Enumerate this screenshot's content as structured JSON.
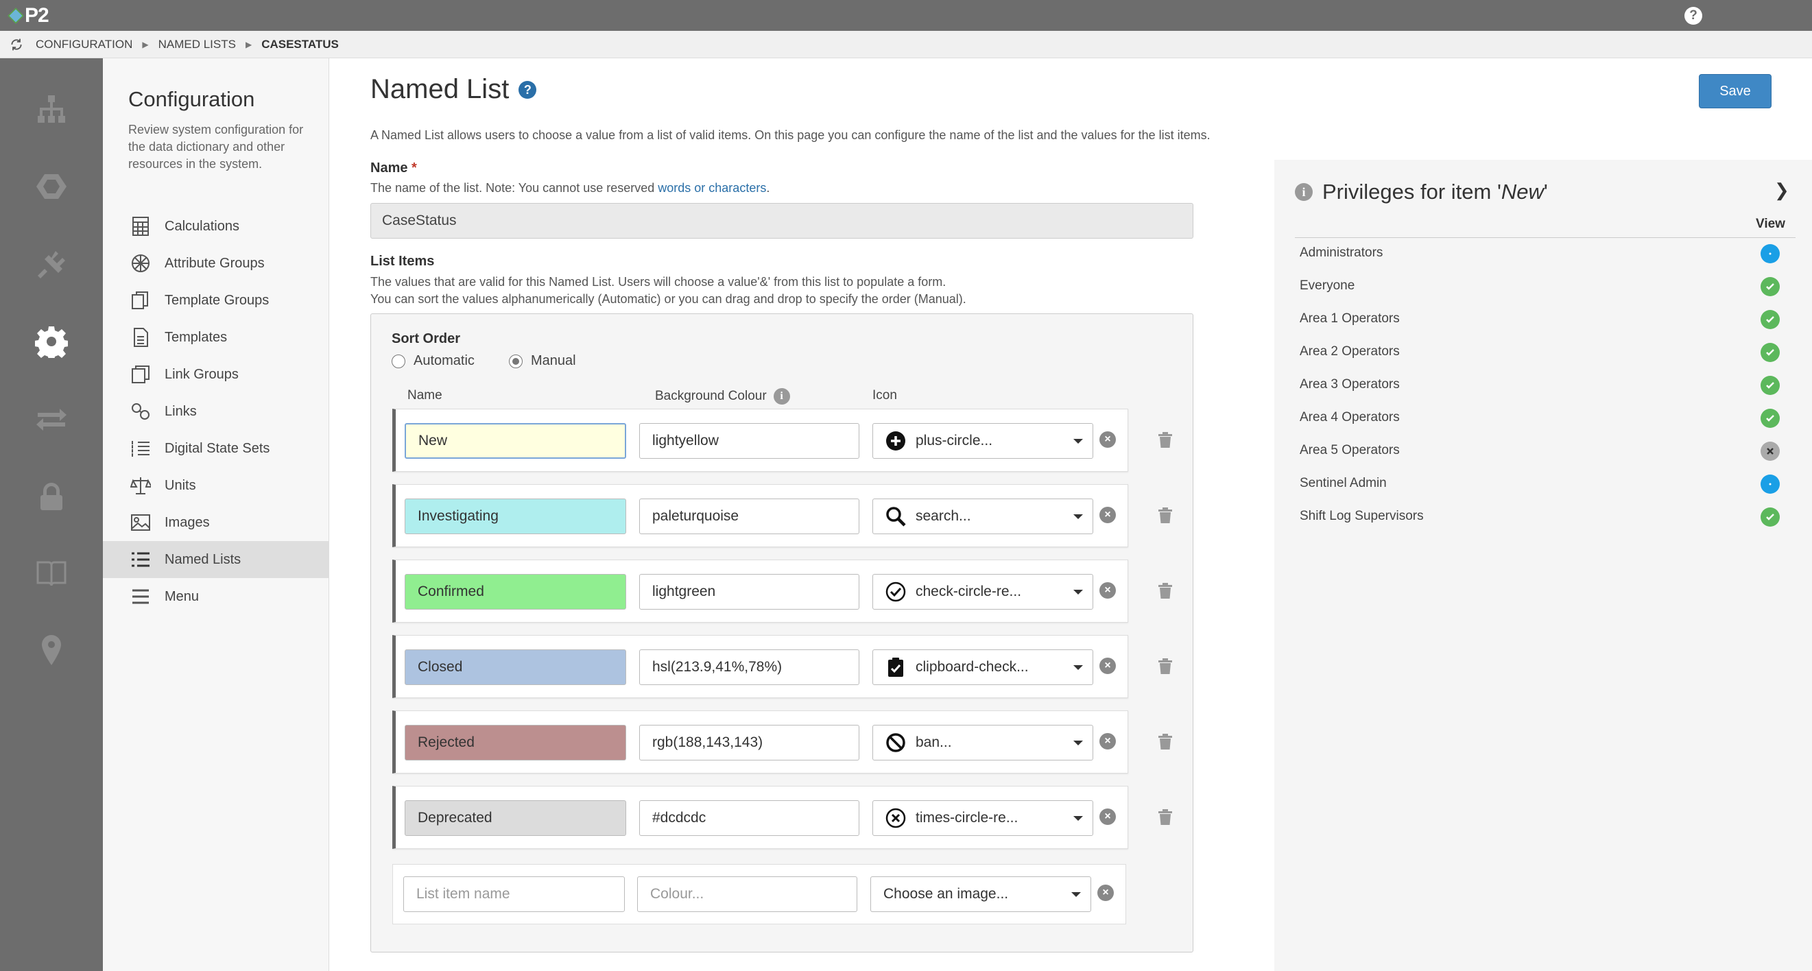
{
  "app": {
    "logo_text": "P2",
    "help_glyph": "?"
  },
  "breadcrumb": [
    "CONFIGURATION",
    "NAMED LISTS",
    "CASESTATUS"
  ],
  "rail": [
    "hierarchy-icon",
    "hexagon-icon",
    "plug-icon",
    "gear-icon",
    "exchange-icon",
    "lock-icon",
    "book-icon",
    "map-marker-icon"
  ],
  "sidebar": {
    "title": "Configuration",
    "description": "Review system configuration for the data dictionary and other resources in the system.",
    "items": [
      {
        "label": "Calculations",
        "icon": "calculator-icon"
      },
      {
        "label": "Attribute Groups",
        "icon": "attribute-groups-icon"
      },
      {
        "label": "Template Groups",
        "icon": "template-groups-icon"
      },
      {
        "label": "Templates",
        "icon": "file-icon"
      },
      {
        "label": "Link Groups",
        "icon": "link-groups-icon"
      },
      {
        "label": "Links",
        "icon": "link-icon"
      },
      {
        "label": "Digital State Sets",
        "icon": "list-ol-icon"
      },
      {
        "label": "Units",
        "icon": "balance-scale-icon"
      },
      {
        "label": "Images",
        "icon": "image-icon"
      },
      {
        "label": "Named Lists",
        "icon": "list-icon",
        "active": true
      },
      {
        "label": "Menu",
        "icon": "bars-icon"
      }
    ]
  },
  "main": {
    "title": "Named List",
    "save_label": "Save",
    "intro": "A Named List allows users to choose a value from a list of valid items. On this page you can configure the name of the list and the values for the list items.",
    "name_label": "Name",
    "required_mark": "*",
    "name_help_prefix": "The name of the list. Note: You cannot use reserved ",
    "name_help_link": "words or characters",
    "name_help_suffix": ".",
    "name_value": "CaseStatus",
    "list_items_label": "List Items",
    "list_items_help_1": "The values that are valid for this Named List. Users will choose a value'&' from this list to populate a form.",
    "list_items_help_2": "You can sort the values alphanumerically (Automatic) or you can drag and drop to specify the order (Manual).",
    "sort_order_label": "Sort Order",
    "sort_automatic": "Automatic",
    "sort_manual": "Manual",
    "col_name": "Name",
    "col_background": "Background Colour",
    "col_icon": "Icon",
    "items": [
      {
        "name": "New",
        "colour": "lightyellow",
        "swatch": "#ffffe0",
        "icon": "plus-circle...",
        "icon_name": "plus-circle-icon"
      },
      {
        "name": "Investigating",
        "colour": "paleturquoise",
        "swatch": "#afeeee",
        "icon": "search...",
        "icon_name": "search-icon"
      },
      {
        "name": "Confirmed",
        "colour": "lightgreen",
        "swatch": "#90ee90",
        "icon": "check-circle-re...",
        "icon_name": "check-circle-icon"
      },
      {
        "name": "Closed",
        "colour": "hsl(213.9,41%,78%)",
        "swatch": "#adc3e0",
        "icon": "clipboard-check...",
        "icon_name": "clipboard-check-icon"
      },
      {
        "name": "Rejected",
        "colour": "rgb(188,143,143)",
        "swatch": "#bc8f8f",
        "icon": "ban...",
        "icon_name": "ban-icon"
      },
      {
        "name": "Deprecated",
        "colour": "#dcdcdc",
        "swatch": "#dcdcdc",
        "icon": "times-circle-re...",
        "icon_name": "times-circle-icon"
      }
    ],
    "new_item": {
      "name_placeholder": "List item name",
      "colour_placeholder": "Colour...",
      "icon_placeholder": "Choose an image..."
    }
  },
  "privileges": {
    "title_prefix": "Privileges for item '",
    "title_item": "New",
    "title_suffix": "'",
    "view_header": "View",
    "rows": [
      {
        "name": "Administrators",
        "state": "inherit"
      },
      {
        "name": "Everyone",
        "state": "allow"
      },
      {
        "name": "Area 1 Operators",
        "state": "allow"
      },
      {
        "name": "Area 2 Operators",
        "state": "allow"
      },
      {
        "name": "Area 3 Operators",
        "state": "allow"
      },
      {
        "name": "Area 4 Operators",
        "state": "allow"
      },
      {
        "name": "Area 5 Operators",
        "state": "deny"
      },
      {
        "name": "Sentinel Admin",
        "state": "inherit"
      },
      {
        "name": "Shift Log Supervisors",
        "state": "allow"
      }
    ]
  }
}
